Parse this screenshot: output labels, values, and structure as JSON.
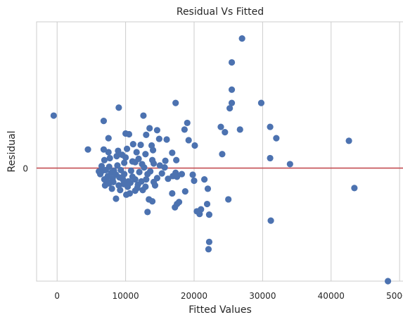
{
  "chart_data": {
    "type": "scatter",
    "title": "Residual Vs Fitted",
    "xlabel": "Fitted Values",
    "ylabel": "Residual",
    "xlim": [
      -3000,
      50600
    ],
    "ylim": [
      -17000,
      22000
    ],
    "x_ticks": [
      0,
      10000,
      20000,
      30000,
      40000,
      50000
    ],
    "x_tick_labels": [
      "0",
      "10000",
      "20000",
      "30000",
      "40000",
      "50000"
    ],
    "y_ticks": [
      0
    ],
    "y_tick_labels": [
      "0"
    ],
    "grid": "vertical",
    "reference_line": {
      "y": 0,
      "color": "#c44e52"
    },
    "point_color": "#4c72b0",
    "points": [
      {
        "x": 27000,
        "y": 19500
      },
      {
        "x": 25500,
        "y": 15900
      },
      {
        "x": 25500,
        "y": 11800
      },
      {
        "x": 25500,
        "y": 9800
      },
      {
        "x": 25200,
        "y": 9000
      },
      {
        "x": 29800,
        "y": 9800
      },
      {
        "x": -500,
        "y": 7900
      },
      {
        "x": 17300,
        "y": 9800
      },
      {
        "x": 9000,
        "y": 9100
      },
      {
        "x": 12600,
        "y": 7900
      },
      {
        "x": 6800,
        "y": 7100
      },
      {
        "x": 19000,
        "y": 6800
      },
      {
        "x": 23900,
        "y": 6200
      },
      {
        "x": 31100,
        "y": 6200
      },
      {
        "x": 26700,
        "y": 5800
      },
      {
        "x": 24500,
        "y": 5400
      },
      {
        "x": 32000,
        "y": 4500
      },
      {
        "x": 42600,
        "y": 4100
      },
      {
        "x": 18600,
        "y": 5800
      },
      {
        "x": 14600,
        "y": 5700
      },
      {
        "x": 13500,
        "y": 6000
      },
      {
        "x": 13000,
        "y": 5000
      },
      {
        "x": 10000,
        "y": 5200
      },
      {
        "x": 10500,
        "y": 5100
      },
      {
        "x": 7500,
        "y": 4500
      },
      {
        "x": 19200,
        "y": 4200
      },
      {
        "x": 14900,
        "y": 4400
      },
      {
        "x": 16000,
        "y": 4300
      },
      {
        "x": 20100,
        "y": 3400
      },
      {
        "x": 11100,
        "y": 3600
      },
      {
        "x": 12200,
        "y": 3500
      },
      {
        "x": 13800,
        "y": 3400
      },
      {
        "x": 4500,
        "y": 2800
      },
      {
        "x": 24100,
        "y": 2100
      },
      {
        "x": 31100,
        "y": 1500
      },
      {
        "x": 34000,
        "y": 600
      },
      {
        "x": 43400,
        "y": -3000
      },
      {
        "x": 31200,
        "y": -7900
      },
      {
        "x": 22200,
        "y": -11100
      },
      {
        "x": 22100,
        "y": -12200
      },
      {
        "x": 48300,
        "y": -17000
      },
      {
        "x": 22200,
        "y": -7000
      },
      {
        "x": 21000,
        "y": -6200
      },
      {
        "x": 20400,
        "y": -6500
      },
      {
        "x": 20800,
        "y": -6900
      },
      {
        "x": 21900,
        "y": -5400
      },
      {
        "x": 25000,
        "y": -4700
      },
      {
        "x": 22000,
        "y": -3100
      },
      {
        "x": 17200,
        "y": -5900
      },
      {
        "x": 17500,
        "y": -5400
      },
      {
        "x": 17800,
        "y": -5100
      },
      {
        "x": 13200,
        "y": -6600
      },
      {
        "x": 13900,
        "y": -5000
      },
      {
        "x": 13400,
        "y": -4700
      },
      {
        "x": 8600,
        "y": -4600
      },
      {
        "x": 16800,
        "y": -3800
      },
      {
        "x": 18700,
        "y": -3500
      },
      {
        "x": 17500,
        "y": -1300
      },
      {
        "x": 19800,
        "y": -1000
      },
      {
        "x": 21500,
        "y": -1700
      },
      {
        "x": 20000,
        "y": -1900
      },
      {
        "x": 15700,
        "y": 100
      },
      {
        "x": 15800,
        "y": 1100
      },
      {
        "x": 17400,
        "y": 1200
      },
      {
        "x": 16900,
        "y": -1200
      },
      {
        "x": 18200,
        "y": -900
      },
      {
        "x": 17300,
        "y": -700
      },
      {
        "x": 14100,
        "y": -2100
      },
      {
        "x": 14300,
        "y": -2600
      },
      {
        "x": 14600,
        "y": -1500
      },
      {
        "x": 13000,
        "y": -1700
      },
      {
        "x": 11400,
        "y": -3400
      },
      {
        "x": 10100,
        "y": -4000
      },
      {
        "x": 10600,
        "y": -3800
      },
      {
        "x": 9200,
        "y": -3300
      },
      {
        "x": 8000,
        "y": -3100
      },
      {
        "x": 7000,
        "y": -2600
      },
      {
        "x": 7600,
        "y": -2300
      },
      {
        "x": 8200,
        "y": -2100
      },
      {
        "x": 9000,
        "y": -2600
      },
      {
        "x": 9600,
        "y": -1700
      },
      {
        "x": 10400,
        "y": -2000
      },
      {
        "x": 11800,
        "y": -2500
      },
      {
        "x": 12300,
        "y": -2000
      },
      {
        "x": 11000,
        "y": -1300
      },
      {
        "x": 9800,
        "y": -900
      },
      {
        "x": 8600,
        "y": -1000
      },
      {
        "x": 7400,
        "y": -1200
      },
      {
        "x": 6300,
        "y": -900
      },
      {
        "x": 6100,
        "y": -500
      },
      {
        "x": 6600,
        "y": -400
      },
      {
        "x": 7100,
        "y": -300
      },
      {
        "x": 8300,
        "y": -400
      },
      {
        "x": 9300,
        "y": -300
      },
      {
        "x": 10800,
        "y": -400
      },
      {
        "x": 12000,
        "y": -600
      },
      {
        "x": 13600,
        "y": -500
      },
      {
        "x": 6500,
        "y": 300
      },
      {
        "x": 7600,
        "y": 200
      },
      {
        "x": 8800,
        "y": 400
      },
      {
        "x": 9800,
        "y": 800
      },
      {
        "x": 11400,
        "y": 900
      },
      {
        "x": 12400,
        "y": 600
      },
      {
        "x": 14100,
        "y": 700
      },
      {
        "x": 15000,
        "y": 400
      },
      {
        "x": 6900,
        "y": 1200
      },
      {
        "x": 7700,
        "y": 1500
      },
      {
        "x": 8700,
        "y": 1800
      },
      {
        "x": 10000,
        "y": 1600
      },
      {
        "x": 11900,
        "y": 1400
      },
      {
        "x": 13900,
        "y": 1200
      },
      {
        "x": 8900,
        "y": 2600
      },
      {
        "x": 10200,
        "y": 2900
      },
      {
        "x": 11600,
        "y": 2400
      },
      {
        "x": 12900,
        "y": 2100
      },
      {
        "x": 14000,
        "y": 2700
      },
      {
        "x": 16800,
        "y": 2300
      },
      {
        "x": 6800,
        "y": 2800
      },
      {
        "x": 7500,
        "y": 2400
      },
      {
        "x": 9500,
        "y": 2000
      },
      {
        "x": 11000,
        "y": 1000
      },
      {
        "x": 12700,
        "y": 100
      },
      {
        "x": 13200,
        "y": -900
      },
      {
        "x": 15300,
        "y": -800
      },
      {
        "x": 16200,
        "y": -1600
      },
      {
        "x": 11400,
        "y": -1700
      },
      {
        "x": 10300,
        "y": -2800
      },
      {
        "x": 12500,
        "y": -3300
      },
      {
        "x": 8100,
        "y": -1600
      },
      {
        "x": 6900,
        "y": -1700
      },
      {
        "x": 7300,
        "y": -2000
      },
      {
        "x": 9100,
        "y": -1400
      },
      {
        "x": 10700,
        "y": -2200
      },
      {
        "x": 11700,
        "y": -3000
      },
      {
        "x": 12900,
        "y": -2800
      },
      {
        "x": 7900,
        "y": -700
      },
      {
        "x": 9700,
        "y": -2400
      }
    ]
  }
}
